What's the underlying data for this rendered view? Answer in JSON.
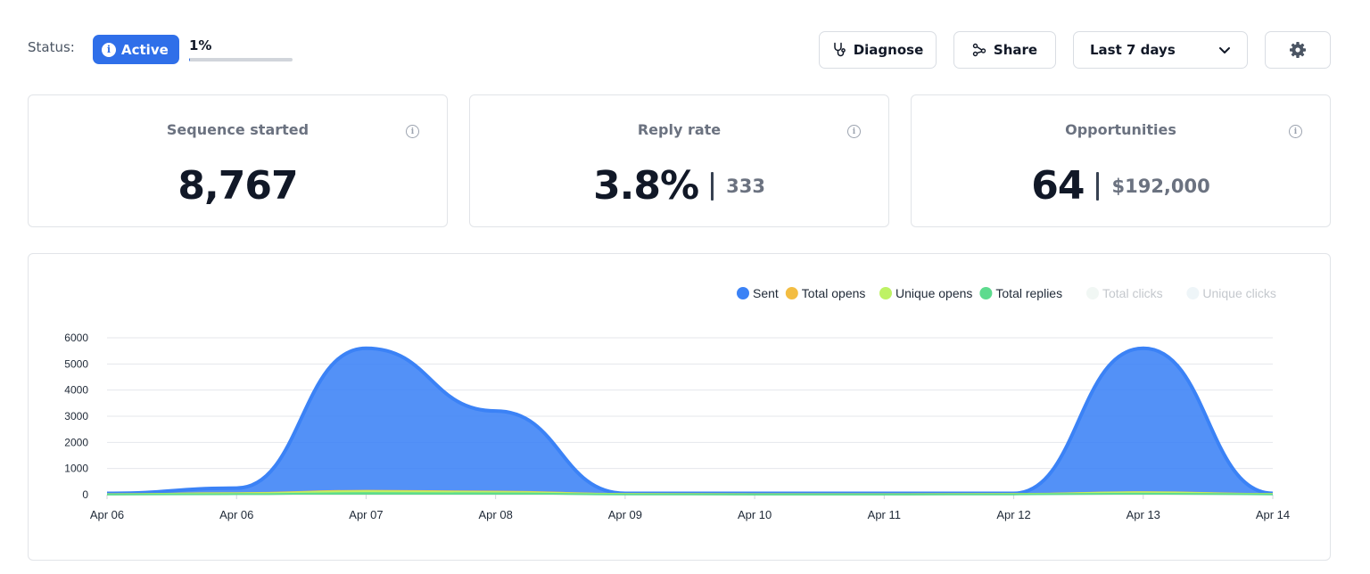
{
  "status": {
    "label": "Status:",
    "badge": "Active",
    "badge_icon": "info-icon",
    "progress_text": "1%",
    "progress_fraction": 0.01
  },
  "toolbar": {
    "diagnose_label": "Diagnose",
    "diagnose_icon": "stethoscope-icon",
    "share_label": "Share",
    "share_icon": "share-icon",
    "range_label": "Last 7 days",
    "range_icon": "chevron-down-icon",
    "settings_icon": "gear-icon"
  },
  "stats": {
    "sequence": {
      "title": "Sequence started",
      "value": "8,767"
    },
    "reply": {
      "title": "Reply rate",
      "value": "3.8%",
      "sub": "333"
    },
    "opportunities": {
      "title": "Opportunities",
      "value": "64",
      "sub": "$192,000"
    }
  },
  "colors": {
    "accent": "#2f6fe9",
    "sent": "#3b82f6",
    "total_opens": "#f3bd42",
    "unique_opens": "#bef264",
    "total_replies": "#5ddb8e",
    "total_clicks": "#f1f7f4",
    "unique_clicks": "#eef5f8"
  },
  "chart_data": {
    "type": "area",
    "ylim": [
      0,
      6000
    ],
    "y_ticks": [
      "6000",
      "5000",
      "4000",
      "3000",
      "2000",
      "1000",
      "0"
    ],
    "x_ticks": [
      "Apr 06",
      "Apr 06",
      "Apr 07",
      "Apr 08",
      "Apr 09",
      "Apr 10",
      "Apr 11",
      "Apr 12",
      "Apr 13",
      "Apr 14"
    ],
    "grid": true,
    "legend_position": "top-right",
    "series": [
      {
        "name": "Sent",
        "key": "sent",
        "values": [
          50,
          250,
          5600,
          3200,
          50,
          50,
          50,
          50,
          5600,
          50
        ],
        "active": true
      },
      {
        "name": "Total opens",
        "key": "total_opens",
        "values": [
          20,
          60,
          150,
          120,
          30,
          20,
          20,
          30,
          100,
          30
        ],
        "active": true
      },
      {
        "name": "Unique opens",
        "key": "unique_opens",
        "values": [
          15,
          50,
          130,
          100,
          25,
          15,
          15,
          25,
          90,
          25
        ],
        "active": true
      },
      {
        "name": "Total replies",
        "key": "total_replies",
        "values": [
          5,
          20,
          60,
          50,
          10,
          5,
          5,
          10,
          40,
          10
        ],
        "active": true
      },
      {
        "name": "Total clicks",
        "key": "total_clicks",
        "values": [],
        "active": false
      },
      {
        "name": "Unique clicks",
        "key": "unique_clicks",
        "values": [],
        "active": false
      }
    ]
  }
}
